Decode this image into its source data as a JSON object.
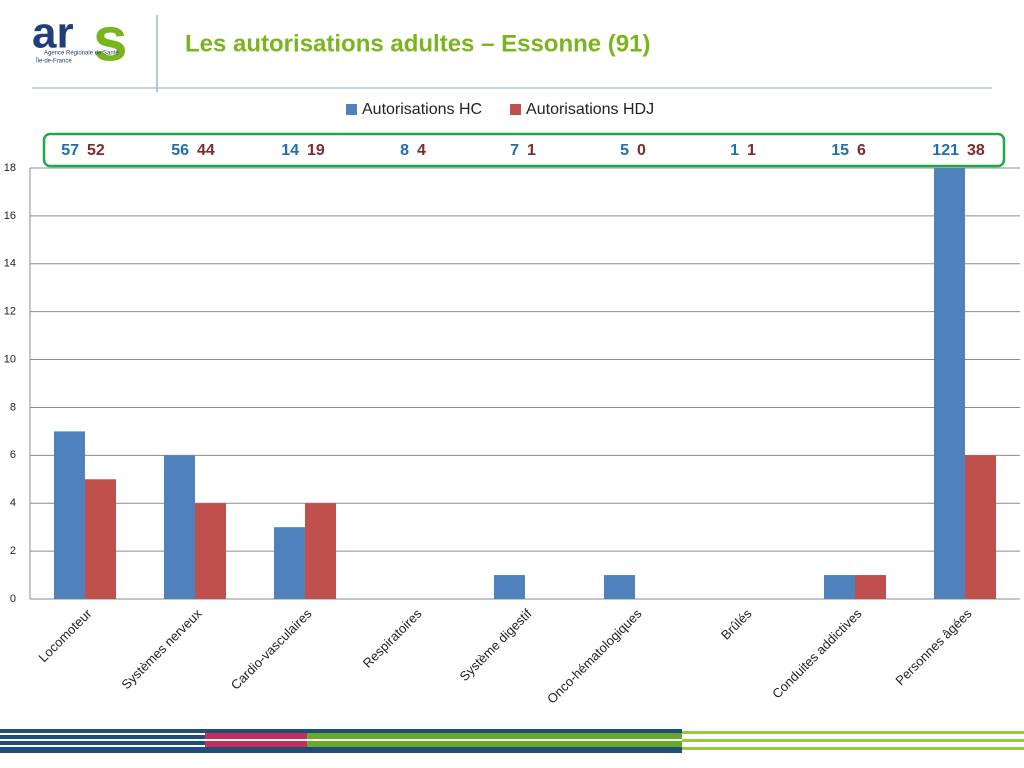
{
  "logo": {
    "letters": [
      "ar",
      "s"
    ],
    "line1": "Agence Régionale de Santé",
    "line2": "Île-de-France"
  },
  "chart_data": {
    "type": "bar",
    "title": "Les autorisations adultes – Essonne (91)",
    "categories": [
      "Locomoteur",
      "Systèmes nerveux",
      "Cardio-vasculaires",
      "Respiratoires",
      "Système digestif",
      "Onco-hématologiques",
      "Brûlés",
      "Conduites addictives",
      "Personnes âgées"
    ],
    "series": [
      {
        "name": "Autorisations HC",
        "color": "#4f81bd",
        "label_color": "#1f6fb0",
        "values": [
          7,
          6,
          3,
          0,
          1,
          1,
          0,
          1,
          18
        ],
        "box_values": [
          57,
          56,
          14,
          8,
          7,
          5,
          1,
          15,
          121
        ]
      },
      {
        "name": "Autorisations HDJ",
        "color": "#c0504d",
        "label_color": "#7b2c2c",
        "values": [
          5,
          4,
          4,
          0,
          0,
          0,
          0,
          1,
          6
        ],
        "box_values": [
          52,
          44,
          19,
          4,
          1,
          0,
          1,
          6,
          38
        ]
      }
    ],
    "ylim": [
      0,
      18
    ],
    "yticks": [
      0,
      2,
      4,
      6,
      8,
      10,
      12,
      14,
      16,
      18
    ],
    "grid": true,
    "legend": "top"
  }
}
